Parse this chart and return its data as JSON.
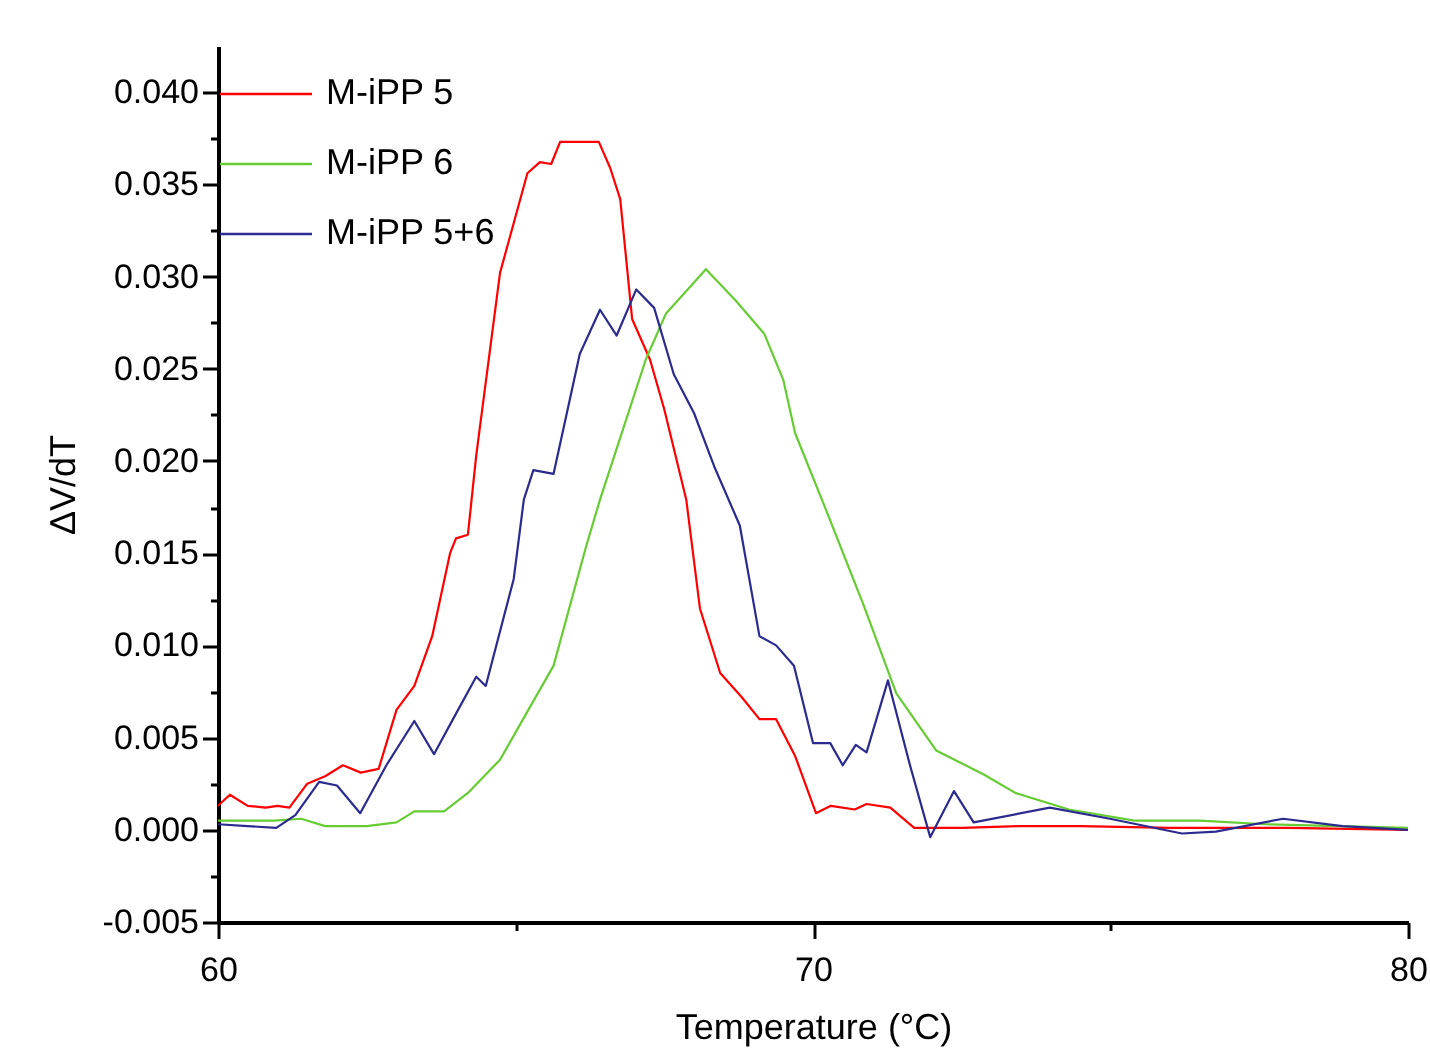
{
  "chart_data": {
    "type": "line",
    "xlabel": "Temperature (°C)",
    "ylabel": "ΔV/dT",
    "xlim": [
      60,
      80
    ],
    "xticks": [
      60,
      {
        "value": 65,
        "label": null
      },
      70,
      {
        "value": 75,
        "label": null
      },
      80
    ],
    "ylim": [
      -0.005,
      0.0425
    ],
    "yticks": [
      {
        "value": -0.005,
        "label": "-0.005"
      },
      {
        "value": -0.0025,
        "label": null
      },
      {
        "value": 0,
        "label": "0.000"
      },
      {
        "value": 0.0025,
        "label": null
      },
      {
        "value": 0.005,
        "label": "0.005"
      },
      {
        "value": 0.0075,
        "label": null
      },
      {
        "value": 0.01,
        "label": "0.010"
      },
      {
        "value": 0.0125,
        "label": null
      },
      {
        "value": 0.015,
        "label": "0.015"
      },
      {
        "value": 0.0175,
        "label": null
      },
      {
        "value": 0.02,
        "label": "0.020"
      },
      {
        "value": 0.0225,
        "label": null
      },
      {
        "value": 0.025,
        "label": "0.025"
      },
      {
        "value": 0.0275,
        "label": null
      },
      {
        "value": 0.03,
        "label": "0.030"
      },
      {
        "value": 0.0325,
        "label": null
      },
      {
        "value": 0.035,
        "label": "0.035"
      },
      {
        "value": 0.0375,
        "label": null
      },
      {
        "value": 0.04,
        "label": "0.040"
      }
    ],
    "grid": false,
    "legend": "top left",
    "marker": "none",
    "line_style": "solid",
    "series": [
      {
        "name": "M-iPP 5",
        "color": "#ff0000",
        "x": [
          60.0,
          60.2,
          60.5,
          60.8,
          61.0,
          61.2,
          61.5,
          61.8,
          62.1,
          62.4,
          62.7,
          63.0,
          63.3,
          63.6,
          63.9,
          64.0,
          64.2,
          64.34,
          64.74,
          65.2,
          65.41,
          65.6,
          65.75,
          66.18,
          66.4,
          66.59,
          66.76,
          66.96,
          67.26,
          67.5,
          67.87,
          68.1,
          68.44,
          68.8,
          69.1,
          69.38,
          69.7,
          70.05,
          70.3,
          70.7,
          70.9,
          71.3,
          71.7,
          72.5,
          73.5,
          74.5,
          76.0,
          78.0,
          80.0
        ],
        "values": [
          0.0013,
          0.0019,
          0.0013,
          0.0012,
          0.0013,
          0.0012,
          0.0025,
          0.0029,
          0.0035,
          0.0031,
          0.0033,
          0.0065,
          0.0078,
          0.0105,
          0.015,
          0.0158,
          0.016,
          0.0203,
          0.0302,
          0.0356,
          0.0362,
          0.0361,
          0.0373,
          0.0373,
          0.0373,
          0.0359,
          0.0342,
          0.0277,
          0.0255,
          0.0228,
          0.0179,
          0.012,
          0.0085,
          0.0072,
          0.006,
          0.006,
          0.004,
          0.0009,
          0.0013,
          0.0011,
          0.0014,
          0.0012,
          0.0001,
          0.0001,
          0.0002,
          0.0002,
          0.0001,
          0.0001,
          0.0
        ]
      },
      {
        "name": "M-iPP 6",
        "color": "#66cc33",
        "x": [
          60.0,
          60.94,
          61.4,
          61.8,
          62.5,
          63.0,
          63.3,
          63.8,
          64.2,
          64.74,
          65.18,
          65.64,
          66.19,
          66.42,
          67.19,
          67.53,
          68.2,
          68.7,
          69.18,
          69.5,
          69.7,
          70.2,
          70.86,
          71.4,
          72.07,
          72.87,
          73.4,
          74.3,
          75.4,
          76.5,
          77.6,
          80.0
        ],
        "values": [
          0.0005,
          0.0005,
          0.0006,
          0.0002,
          0.0002,
          0.0004,
          0.001,
          0.001,
          0.002,
          0.0038,
          0.0063,
          0.0089,
          0.0154,
          0.0179,
          0.0255,
          0.028,
          0.0304,
          0.0287,
          0.0269,
          0.0244,
          0.0215,
          0.0175,
          0.0121,
          0.0074,
          0.0043,
          0.003,
          0.002,
          0.0011,
          0.0005,
          0.0005,
          0.0003,
          0.0001
        ]
      },
      {
        "name": "M-iPP 5+6",
        "color": "#2b2b8f",
        "x": [
          60.0,
          60.5,
          60.98,
          61.3,
          61.7,
          62.0,
          62.39,
          62.83,
          63.3,
          63.63,
          64.0,
          64.34,
          64.5,
          64.97,
          65.14,
          65.3,
          65.64,
          66.08,
          66.42,
          66.7,
          67.03,
          67.33,
          67.66,
          68.0,
          68.34,
          68.77,
          69.1,
          69.38,
          69.68,
          70.0,
          70.29,
          70.5,
          70.72,
          70.9,
          71.26,
          71.63,
          71.97,
          72.37,
          72.7,
          73.98,
          74.99,
          76.2,
          76.77,
          77.9,
          78.9,
          80.0
        ],
        "values": [
          0.0003,
          0.0002,
          0.0001,
          0.0008,
          0.0026,
          0.0024,
          0.0009,
          0.0035,
          0.0059,
          0.0041,
          0.0063,
          0.0083,
          0.0078,
          0.0136,
          0.0179,
          0.0195,
          0.0193,
          0.0258,
          0.0282,
          0.0268,
          0.0293,
          0.0283,
          0.0247,
          0.0226,
          0.0197,
          0.0165,
          0.0105,
          0.01,
          0.0089,
          0.0047,
          0.0047,
          0.0035,
          0.0046,
          0.0042,
          0.0081,
          0.0035,
          -0.0004,
          0.0021,
          0.0004,
          0.0012,
          0.0006,
          -0.0002,
          -0.0001,
          0.0006,
          0.0002,
          0.0
        ]
      }
    ]
  }
}
